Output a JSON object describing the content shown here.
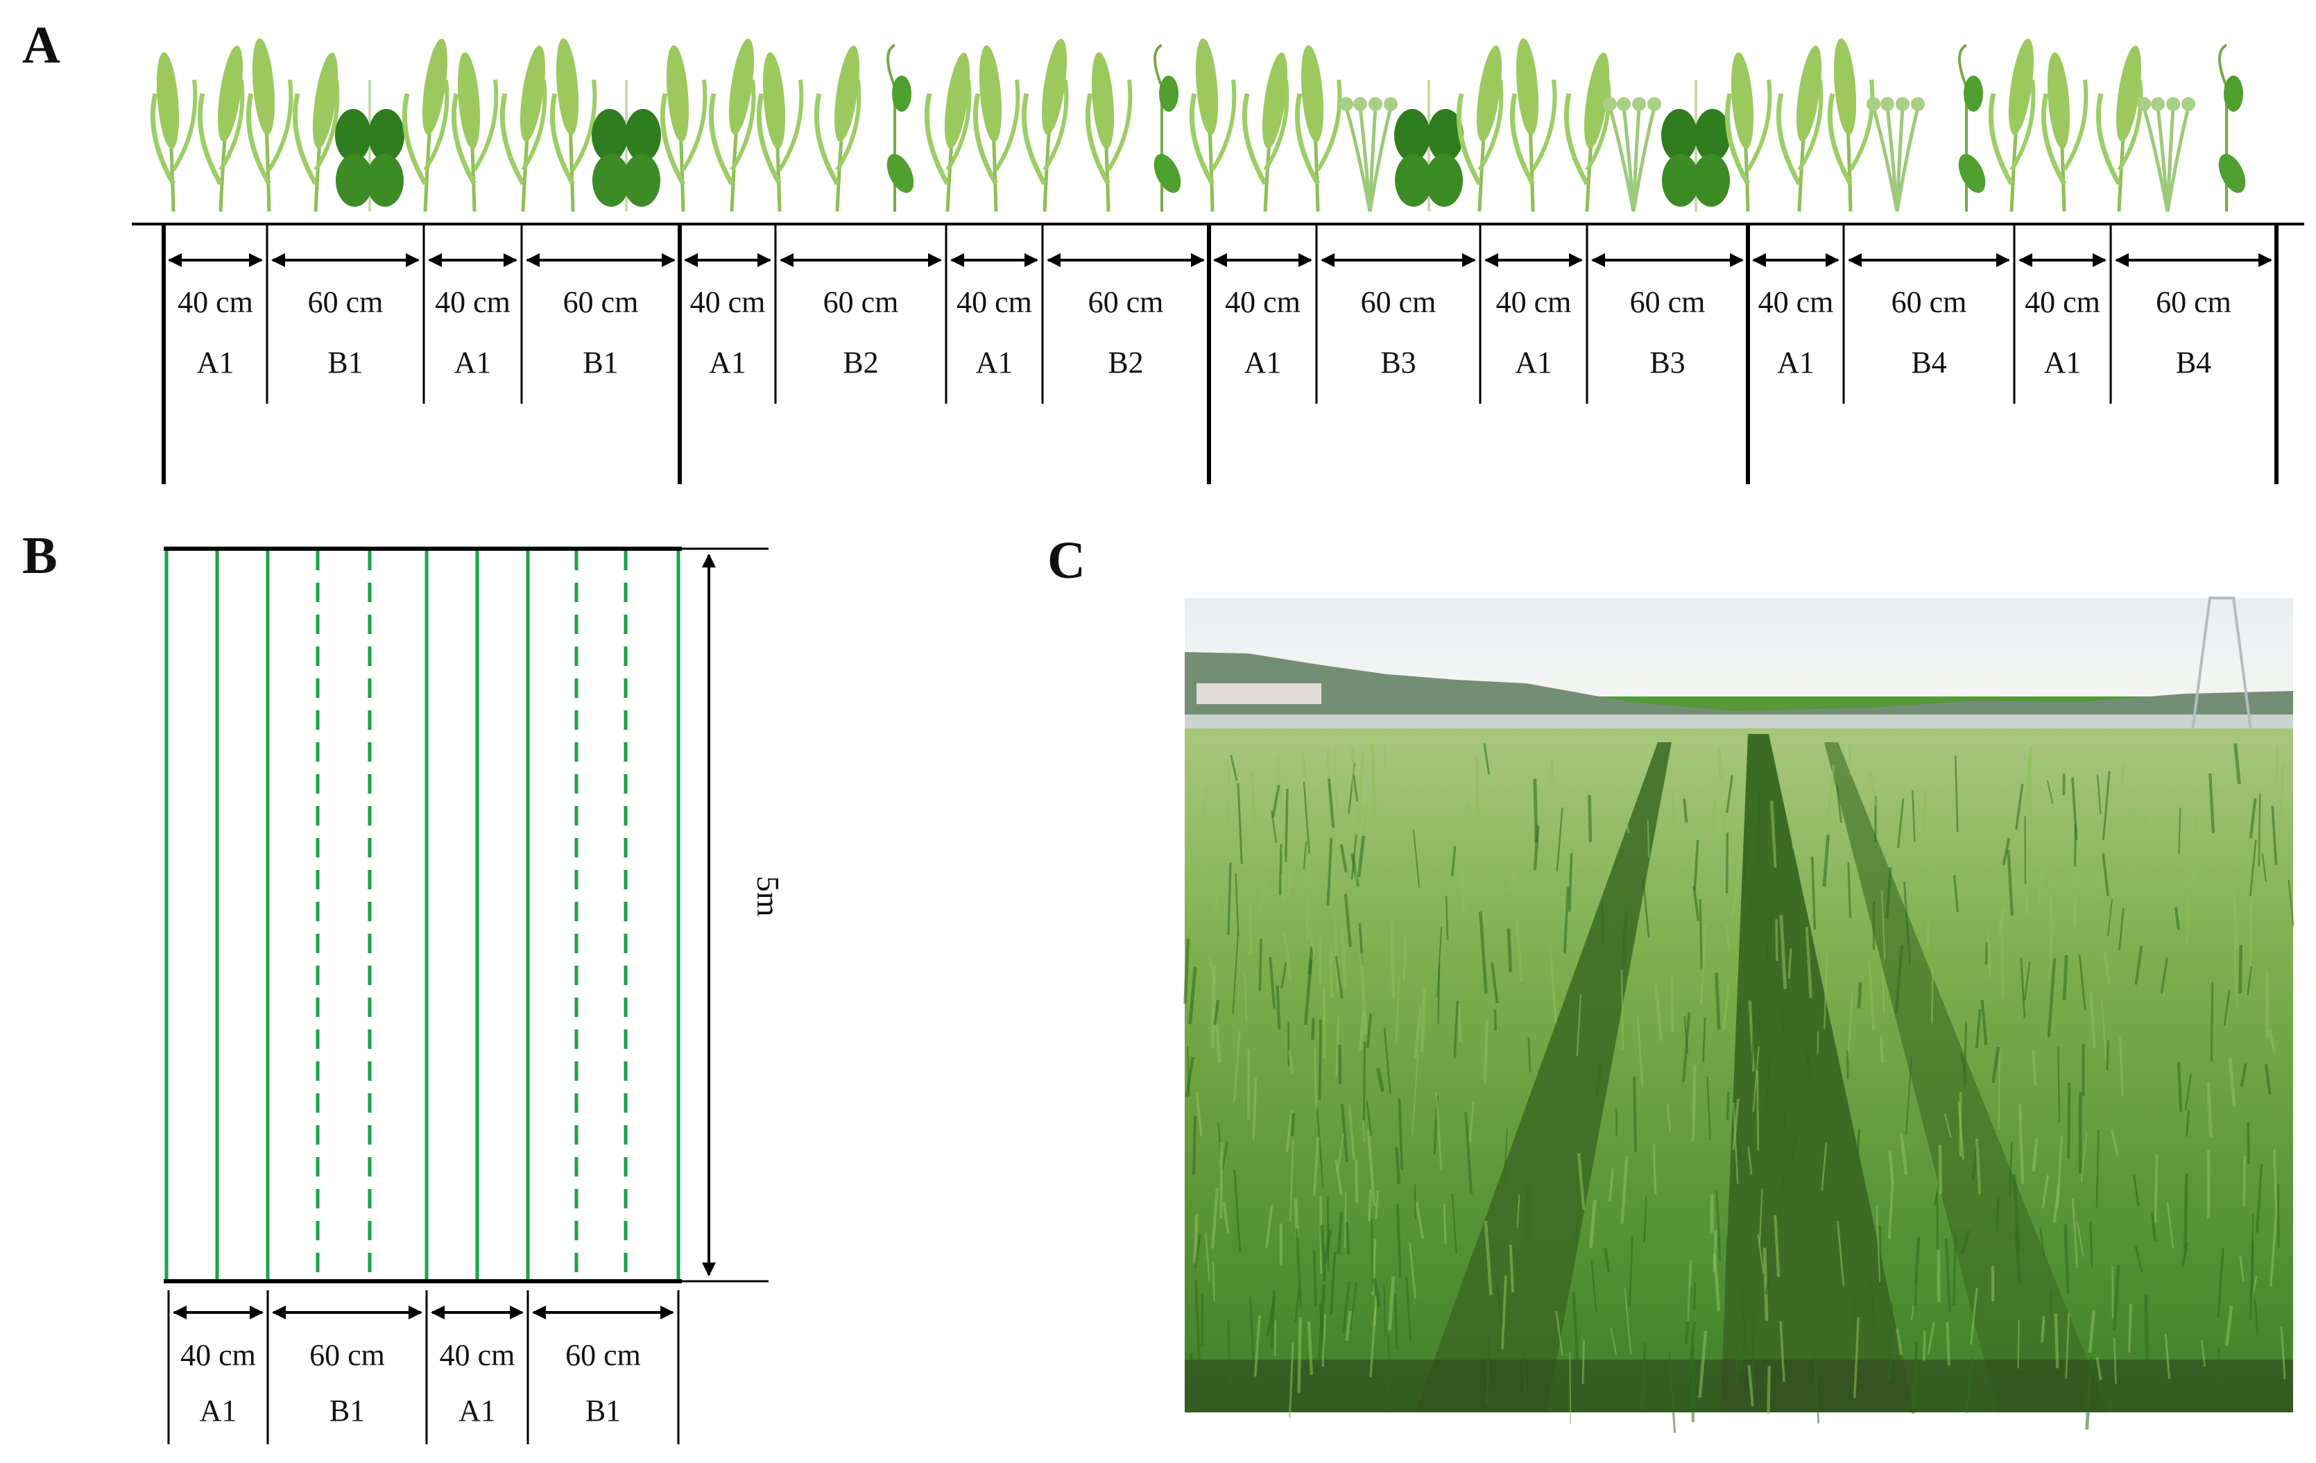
{
  "panels": {
    "a": {
      "letter": "A"
    },
    "b": {
      "letter": "B"
    },
    "c": {
      "letter": "C"
    }
  },
  "colors": {
    "stripe_green": "#1aa34a",
    "wheat": "#9cc95e",
    "legume": "#2f7d1e",
    "line": "#000000"
  },
  "panel_a": {
    "strips": [
      {
        "width": "40 cm",
        "code": "A1"
      },
      {
        "width": "60 cm",
        "code": "B1"
      },
      {
        "width": "40 cm",
        "code": "A1"
      },
      {
        "width": "60 cm",
        "code": "B1"
      },
      {
        "width": "40 cm",
        "code": "A1"
      },
      {
        "width": "60 cm",
        "code": "B2"
      },
      {
        "width": "40 cm",
        "code": "A1"
      },
      {
        "width": "60 cm",
        "code": "B2"
      },
      {
        "width": "40 cm",
        "code": "A1"
      },
      {
        "width": "60 cm",
        "code": "B3"
      },
      {
        "width": "40 cm",
        "code": "A1"
      },
      {
        "width": "60 cm",
        "code": "B3"
      },
      {
        "width": "40 cm",
        "code": "A1"
      },
      {
        "width": "60 cm",
        "code": "B4"
      },
      {
        "width": "40 cm",
        "code": "A1"
      },
      {
        "width": "60 cm",
        "code": "B4"
      }
    ]
  },
  "panel_b": {
    "length_label": "5m",
    "strips": [
      {
        "width": "40 cm",
        "code": "A1"
      },
      {
        "width": "60 cm",
        "code": "B1"
      },
      {
        "width": "40 cm",
        "code": "A1"
      },
      {
        "width": "60 cm",
        "code": "B1"
      }
    ]
  },
  "panel_c": {
    "photo": "field-photo"
  }
}
